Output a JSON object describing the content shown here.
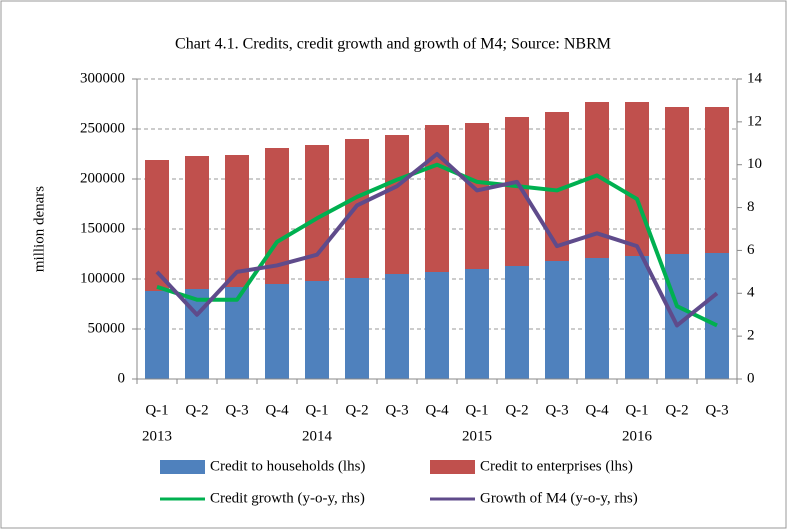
{
  "chart_data": {
    "type": "bar_line",
    "title": "Chart 4.1. Credits, credit growth and growth of M4; Source: NBRM",
    "y_label": "million denars",
    "categories": [
      "Q-1",
      "Q-2",
      "Q-3",
      "Q-4",
      "Q-1",
      "Q-2",
      "Q-3",
      "Q-4",
      "Q-1",
      "Q-2",
      "Q-3",
      "Q-4",
      "Q-1",
      "Q-2",
      "Q-3"
    ],
    "years": [
      "2013",
      null,
      null,
      null,
      "2014",
      null,
      null,
      null,
      "2015",
      null,
      null,
      null,
      "2016",
      null,
      null
    ],
    "series": [
      {
        "name": "Credit to households (lhs)",
        "kind": "bar",
        "color": "#4f81bd",
        "values": [
          88000,
          90000,
          92000,
          95000,
          98000,
          101000,
          105000,
          107000,
          110000,
          113000,
          118000,
          121000,
          123000,
          125000,
          126000
        ]
      },
      {
        "name": "Credit to enterprises (lhs)",
        "kind": "bar",
        "color": "#c0504d",
        "values": [
          131000,
          133000,
          132000,
          136000,
          136000,
          139000,
          139000,
          147000,
          146000,
          149000,
          149000,
          156000,
          154000,
          147000,
          146000
        ]
      },
      {
        "name": "Credit growth (y-o-y, rhs)",
        "kind": "line",
        "axis": "y2",
        "color": "#00b050",
        "values": [
          4.3,
          3.7,
          3.7,
          6.4,
          7.5,
          8.5,
          9.3,
          10.0,
          9.2,
          9.0,
          8.8,
          9.5,
          8.4,
          3.4,
          2.5
        ]
      },
      {
        "name": "Growth of M4 (y-o-y, rhs)",
        "kind": "line",
        "axis": "y2",
        "color": "#5f4b8b",
        "values": [
          5.0,
          3.0,
          5.0,
          5.3,
          5.8,
          8.1,
          9.0,
          10.5,
          8.8,
          9.2,
          6.2,
          6.8,
          6.2,
          2.5,
          4.0
        ]
      }
    ],
    "ylim": [
      0,
      300000
    ],
    "yticks": [
      0,
      50000,
      100000,
      150000,
      200000,
      250000,
      300000
    ],
    "y2lim": [
      0,
      14
    ],
    "y2ticks": [
      0,
      2,
      4,
      6,
      8,
      10,
      12,
      14
    ],
    "grid": true,
    "legend": "bottom"
  }
}
